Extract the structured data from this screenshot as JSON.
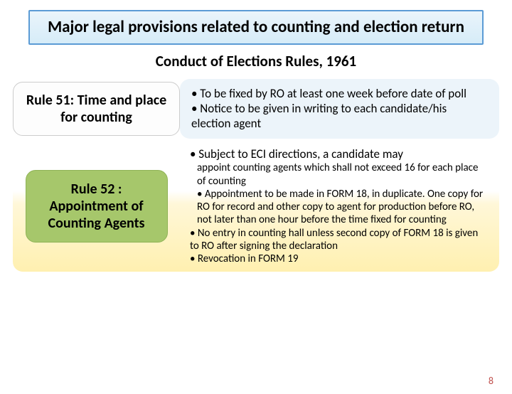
{
  "title": "Major legal provisions related to counting and election return",
  "subtitle": "Conduct of Elections Rules, 1961",
  "rule51": {
    "label": "Rule 51: Time and place for counting",
    "b1": "• To be fixed by RO at least one week before date of poll",
    "b2": "• Notice to be given in writing to each candidate/his election agent"
  },
  "rule52": {
    "label": "Rule 52 : Appointment of Counting Agents",
    "lead": "• Subject to ECI directions, a candidate may",
    "b1": "appoint counting agents which shall not exceed 16  for each place of counting",
    "b2": "•  Appointment to be made in FORM 18, in duplicate.  One copy for RO for record and other copy to agent for production before RO, not later than one hour before the time fixed for counting",
    "b3": "• No entry in counting hall unless second copy of FORM 18 is given to RO after signing the declaration",
    "b4": "• Revocation in FORM 19"
  },
  "pagenum": "8",
  "colors": {
    "title_border": "#5b9bd5",
    "rule52_pill": "#a6c76b",
    "detail51_bg": "#ecf4fa",
    "pagenum": "#c0504d"
  }
}
